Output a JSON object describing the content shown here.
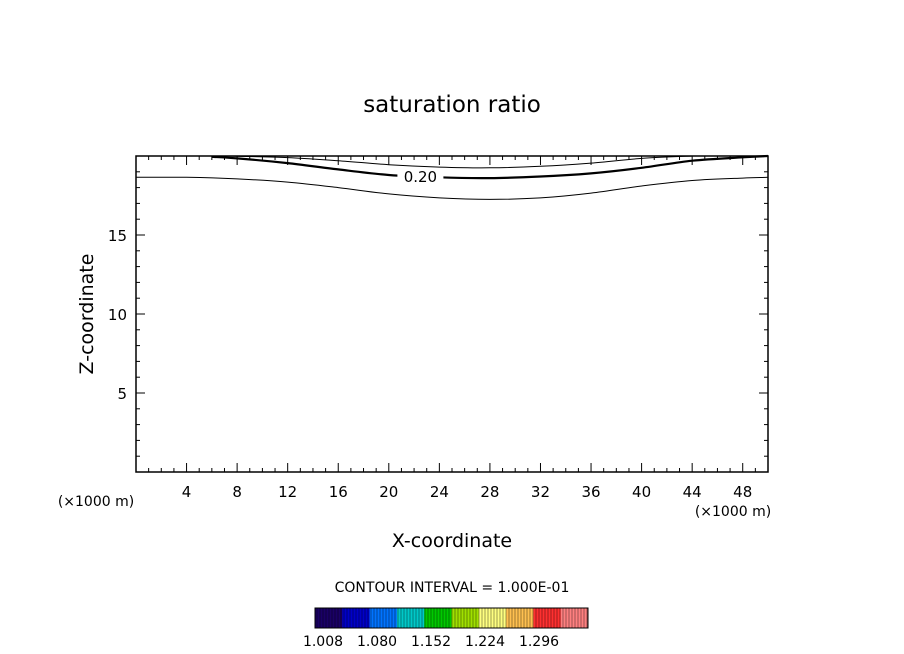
{
  "chart_data": {
    "type": "contour",
    "title": "saturation ratio",
    "xlabel": "X-coordinate",
    "ylabel": "Z-coordinate",
    "x_unit": "(×1000 m)",
    "y_unit": "(×1000 m)",
    "xlim": [
      0,
      50
    ],
    "ylim": [
      0,
      20
    ],
    "x_ticks": [
      4,
      8,
      12,
      16,
      20,
      24,
      28,
      32,
      36,
      40,
      44,
      48
    ],
    "y_ticks": [
      5,
      10,
      15
    ],
    "contour_interval_text": "CONTOUR INTERVAL = 1.000E-01",
    "contours": [
      {
        "level": 0.1,
        "label": "",
        "bold": false,
        "points": [
          [
            0,
            18.65
          ],
          [
            4,
            18.65
          ],
          [
            8,
            18.55
          ],
          [
            12,
            18.35
          ],
          [
            16,
            18.0
          ],
          [
            20,
            17.6
          ],
          [
            24,
            17.35
          ],
          [
            28,
            17.25
          ],
          [
            32,
            17.35
          ],
          [
            36,
            17.65
          ],
          [
            40,
            18.1
          ],
          [
            44,
            18.45
          ],
          [
            48,
            18.6
          ],
          [
            50,
            18.65
          ]
        ]
      },
      {
        "level": 0.2,
        "label": "0.20",
        "bold": true,
        "points": [
          [
            6,
            19.95
          ],
          [
            8,
            19.85
          ],
          [
            12,
            19.55
          ],
          [
            16,
            19.15
          ],
          [
            20,
            18.8
          ],
          [
            24,
            18.65
          ],
          [
            28,
            18.6
          ],
          [
            32,
            18.7
          ],
          [
            36,
            18.9
          ],
          [
            40,
            19.25
          ],
          [
            44,
            19.7
          ],
          [
            48,
            19.92
          ],
          [
            50,
            20.0
          ]
        ]
      },
      {
        "level": 0.3,
        "label": "",
        "bold": false,
        "points": [
          [
            7,
            20.0
          ],
          [
            12,
            19.9
          ],
          [
            16,
            19.7
          ],
          [
            20,
            19.45
          ],
          [
            24,
            19.3
          ],
          [
            28,
            19.25
          ],
          [
            32,
            19.35
          ],
          [
            36,
            19.55
          ],
          [
            40,
            19.85
          ],
          [
            44,
            20.0
          ]
        ]
      }
    ],
    "colorbar": {
      "tick_labels": [
        "1.008",
        "1.080",
        "1.152",
        "1.224",
        "1.296"
      ],
      "colors": [
        "#1a0066",
        "#0000c8",
        "#0073ff",
        "#00c8c8",
        "#00c800",
        "#a0e000",
        "#ffff80",
        "#ffc050",
        "#ff3030",
        "#ff8080"
      ]
    }
  }
}
